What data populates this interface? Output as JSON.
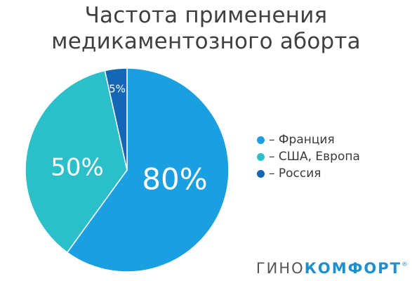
{
  "chart_data": {
    "type": "pie",
    "title_lines": [
      "Частота применения",
      "медикаментозного аборта"
    ],
    "slices": [
      {
        "label": "Франция",
        "value_label": "80%",
        "share": 0.6,
        "color": "#1aa0e0"
      },
      {
        "label": "США, Европа",
        "value_label": "50%",
        "share": 0.365,
        "color": "#2bbfca"
      },
      {
        "label": "Россия",
        "value_label": "5%",
        "share": 0.035,
        "color": "#1367b4"
      }
    ],
    "legend_placement": "right",
    "legend": [
      "– Франция",
      "– США, Европа",
      "– Россия"
    ]
  },
  "brand": {
    "part1": "ГИНО",
    "part2": "КОМФОРТ",
    "mark": "®"
  }
}
